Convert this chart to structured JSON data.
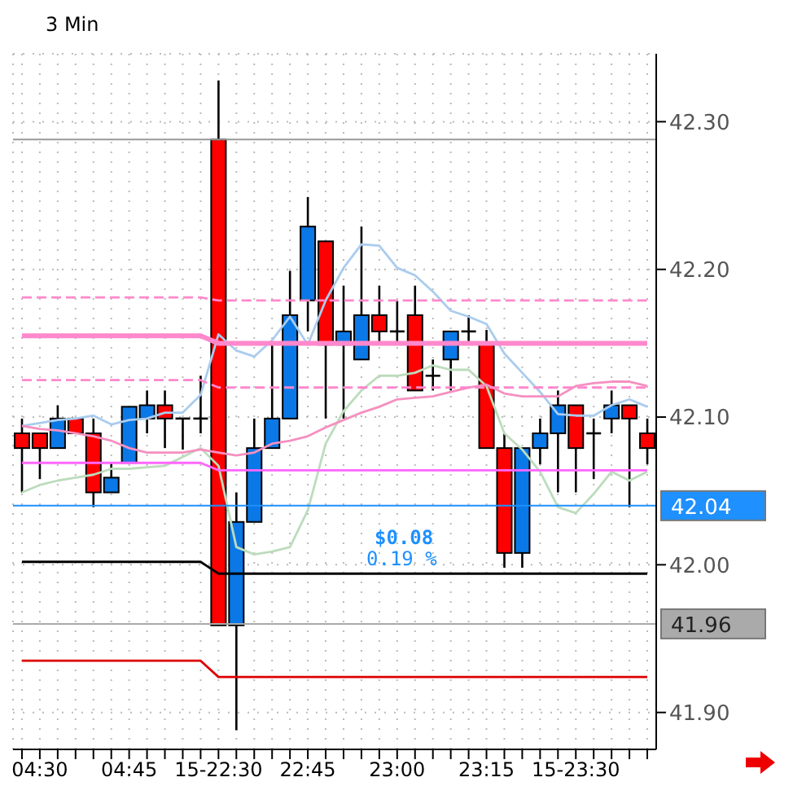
{
  "chart_data": {
    "type": "candlestick",
    "title": "3 Min",
    "categories": [
      null,
      "04:30",
      null,
      null,
      null,
      null,
      "04:45",
      null,
      null,
      null,
      null,
      "15-22:30",
      null,
      null,
      null,
      null,
      "22:45",
      null,
      null,
      null,
      null,
      "23:00",
      null,
      null,
      null,
      null,
      "23:15",
      null,
      null,
      null,
      null,
      "15-23:30",
      null,
      null,
      null,
      null
    ],
    "ohlc": [
      [
        42.089,
        42.099,
        42.049,
        42.079
      ],
      [
        42.089,
        42.089,
        42.058,
        42.079
      ],
      [
        42.079,
        42.108,
        42.079,
        42.099
      ],
      [
        42.099,
        42.099,
        42.089,
        42.089
      ],
      [
        42.089,
        42.099,
        42.039,
        42.049
      ],
      [
        42.049,
        42.069,
        42.049,
        42.059
      ],
      [
        42.069,
        42.107,
        42.069,
        42.107
      ],
      [
        42.099,
        42.118,
        42.089,
        42.108
      ],
      [
        42.108,
        42.118,
        42.079,
        42.099
      ],
      [
        42.099,
        42.099,
        42.078,
        42.099
      ],
      [
        42.099,
        42.128,
        42.089,
        42.099
      ],
      [
        42.288,
        42.328,
        41.959,
        41.959
      ],
      [
        41.959,
        42.049,
        41.888,
        42.029
      ],
      [
        42.029,
        42.099,
        42.029,
        42.079
      ],
      [
        42.079,
        42.149,
        42.079,
        42.099
      ],
      [
        42.099,
        42.199,
        42.099,
        42.169
      ],
      [
        42.179,
        42.249,
        42.158,
        42.229
      ],
      [
        42.219,
        42.219,
        42.099,
        42.149
      ],
      [
        42.149,
        42.189,
        42.099,
        42.158
      ],
      [
        42.139,
        42.229,
        42.139,
        42.169
      ],
      [
        42.169,
        42.189,
        42.149,
        42.158
      ],
      [
        42.158,
        42.179,
        42.149,
        42.158
      ],
      [
        42.169,
        42.189,
        42.118,
        42.118
      ],
      [
        42.128,
        42.139,
        42.118,
        42.128
      ],
      [
        42.139,
        42.158,
        42.118,
        42.158
      ],
      [
        42.158,
        42.169,
        42.149,
        42.158
      ],
      [
        42.149,
        42.159,
        42.079,
        42.079
      ],
      [
        42.079,
        42.089,
        41.998,
        42.008
      ],
      [
        42.008,
        42.079,
        41.998,
        42.079
      ],
      [
        42.079,
        42.099,
        42.068,
        42.089
      ],
      [
        42.089,
        42.118,
        42.049,
        42.108
      ],
      [
        42.108,
        42.108,
        42.049,
        42.079
      ],
      [
        42.089,
        42.099,
        42.058,
        42.089
      ],
      [
        42.099,
        42.118,
        42.089,
        42.108
      ],
      [
        42.108,
        42.108,
        42.039,
        42.099
      ],
      [
        42.089,
        42.099,
        42.068,
        42.079
      ]
    ],
    "colors": [
      "#ff0000",
      "#ff0000",
      "#0a78e6",
      "#ff0000",
      "#ff0000",
      "#0a78e6",
      "#0a78e6",
      "#0a78e6",
      "#ff0000",
      "#000000",
      "#000000",
      "#ff0000",
      "#0a78e6",
      "#0a78e6",
      "#0a78e6",
      "#0a78e6",
      "#0a78e6",
      "#ff0000",
      "#0a78e6",
      "#0a78e6",
      "#ff0000",
      "#000000",
      "#ff0000",
      "#000000",
      "#0a78e6",
      "#000000",
      "#ff0000",
      "#ff0000",
      "#0a78e6",
      "#0a78e6",
      "#0a78e6",
      "#ff0000",
      "#000000",
      "#0a78e6",
      "#ff0000",
      "#ff0000"
    ],
    "series": [
      {
        "type": "line",
        "color": "#aaccee",
        "values": [
          42.094,
          42.096,
          42.098,
          42.099,
          42.101,
          42.095,
          42.098,
          42.099,
          42.103,
          42.103,
          42.115,
          42.156,
          42.145,
          42.141,
          42.152,
          42.168,
          42.149,
          42.179,
          42.201,
          42.217,
          42.216,
          42.201,
          42.196,
          42.185,
          42.172,
          42.168,
          42.163,
          42.143,
          42.13,
          42.117,
          42.102,
          42.101,
          42.101,
          42.108,
          42.112,
          42.107
        ]
      },
      {
        "type": "line",
        "color": "#bcdcbc",
        "values": [
          42.049,
          42.054,
          42.057,
          42.059,
          42.061,
          42.065,
          42.065,
          42.066,
          42.067,
          42.073,
          42.079,
          42.067,
          42.012,
          42.007,
          42.009,
          42.012,
          42.037,
          42.082,
          42.104,
          42.118,
          42.128,
          42.128,
          42.13,
          42.135,
          42.132,
          42.132,
          42.121,
          42.089,
          42.078,
          42.063,
          42.039,
          42.035,
          42.048,
          42.063,
          42.057,
          42.063
        ]
      },
      {
        "type": "line",
        "color": "#f590c0",
        "values": [
          42.094,
          42.092,
          42.091,
          42.089,
          42.087,
          42.084,
          42.079,
          42.076,
          42.076,
          42.076,
          42.078,
          42.076,
          42.074,
          42.076,
          42.082,
          42.084,
          42.087,
          42.093,
          42.098,
          42.103,
          42.107,
          42.112,
          42.113,
          42.114,
          42.117,
          42.12,
          42.122,
          42.116,
          42.114,
          42.114,
          42.114,
          42.121,
          42.123,
          42.124,
          42.124,
          42.121
        ]
      },
      {
        "type": "line",
        "color": "#ff88cc",
        "line_style": "solid",
        "values": [
          42.155,
          42.155,
          42.155,
          42.155,
          42.155,
          42.155,
          42.155,
          42.155,
          42.155,
          42.155,
          42.155,
          42.15,
          42.15,
          42.15,
          42.15,
          42.15,
          42.15,
          42.15,
          42.15,
          42.15,
          42.15,
          42.15,
          42.15,
          42.15,
          42.15,
          42.15,
          42.15,
          42.15,
          42.15,
          42.15,
          42.15,
          42.15,
          42.15,
          42.15,
          42.15,
          42.15
        ]
      },
      {
        "type": "line",
        "color": "#ff88cc",
        "line_style": "dashed",
        "values": [
          42.181,
          42.181,
          42.181,
          42.181,
          42.181,
          42.181,
          42.181,
          42.181,
          42.181,
          42.181,
          42.181,
          42.179,
          42.179,
          42.179,
          42.179,
          42.179,
          42.179,
          42.179,
          42.179,
          42.179,
          42.179,
          42.179,
          42.179,
          42.179,
          42.179,
          42.179,
          42.179,
          42.179,
          42.179,
          42.179,
          42.179,
          42.179,
          42.179,
          42.179,
          42.179,
          42.179
        ]
      },
      {
        "type": "line",
        "color": "#ff88cc",
        "line_style": "dashed",
        "values": [
          42.125,
          42.125,
          42.125,
          42.125,
          42.125,
          42.125,
          42.125,
          42.125,
          42.125,
          42.125,
          42.125,
          42.12,
          42.12,
          42.12,
          42.12,
          42.12,
          42.12,
          42.12,
          42.12,
          42.12,
          42.12,
          42.12,
          42.12,
          42.12,
          42.12,
          42.12,
          42.12,
          42.12,
          42.12,
          42.12,
          42.12,
          42.12,
          42.12,
          42.12,
          42.12,
          42.12
        ]
      },
      {
        "type": "line",
        "color": "#ff66ff",
        "line_style": "solid",
        "values": [
          42.069,
          42.069,
          42.069,
          42.069,
          42.069,
          42.069,
          42.069,
          42.069,
          42.069,
          42.069,
          42.069,
          42.064,
          42.064,
          42.064,
          42.064,
          42.064,
          42.064,
          42.064,
          42.064,
          42.064,
          42.064,
          42.064,
          42.064,
          42.064,
          42.064,
          42.064,
          42.064,
          42.064,
          42.064,
          42.064,
          42.064,
          42.064,
          42.064,
          42.064,
          42.064,
          42.064
        ]
      },
      {
        "type": "line",
        "color": "#000000",
        "line_style": "solid",
        "values": [
          42.002,
          42.002,
          42.002,
          42.002,
          42.002,
          42.002,
          42.002,
          42.002,
          42.002,
          42.002,
          42.002,
          41.994,
          41.994,
          41.994,
          41.994,
          41.994,
          41.994,
          41.994,
          41.994,
          41.994,
          41.994,
          41.994,
          41.994,
          41.994,
          41.994,
          41.994,
          41.994,
          41.994,
          41.994,
          41.994,
          41.994,
          41.994,
          41.994,
          41.994,
          41.994,
          41.994
        ]
      },
      {
        "type": "line",
        "color": "#dd0000",
        "line_style": "solid",
        "values": [
          41.935,
          41.935,
          41.935,
          41.935,
          41.935,
          41.935,
          41.935,
          41.935,
          41.935,
          41.935,
          41.935,
          41.924,
          41.924,
          41.924,
          41.924,
          41.924,
          41.924,
          41.924,
          41.924,
          41.924,
          41.924,
          41.924,
          41.924,
          41.924,
          41.924,
          41.924,
          41.924,
          41.924,
          41.924,
          41.924,
          41.924,
          41.924,
          41.924,
          41.924,
          41.924,
          41.924
        ]
      }
    ],
    "ref_lines": [
      {
        "axis": "y",
        "value": 42.288,
        "color": "#999999"
      },
      {
        "axis": "y",
        "value": 42.04,
        "label": "42.04",
        "color": "#1e90ff"
      },
      {
        "axis": "y",
        "value": 41.96,
        "label": "41.96",
        "color": "#aaaaaa"
      }
    ],
    "annotations": [
      "$0.08",
      "0.19 %"
    ],
    "ylim": [
      41.875,
      42.346
    ],
    "yticks": [
      {
        "value": 41.9,
        "label": "41.90"
      },
      {
        "value": 42.0,
        "label": "42.00"
      },
      {
        "value": 42.1,
        "label": "42.10"
      },
      {
        "value": 42.2,
        "label": "42.20"
      },
      {
        "value": 42.3,
        "label": "42.30"
      }
    ],
    "grid": true
  }
}
